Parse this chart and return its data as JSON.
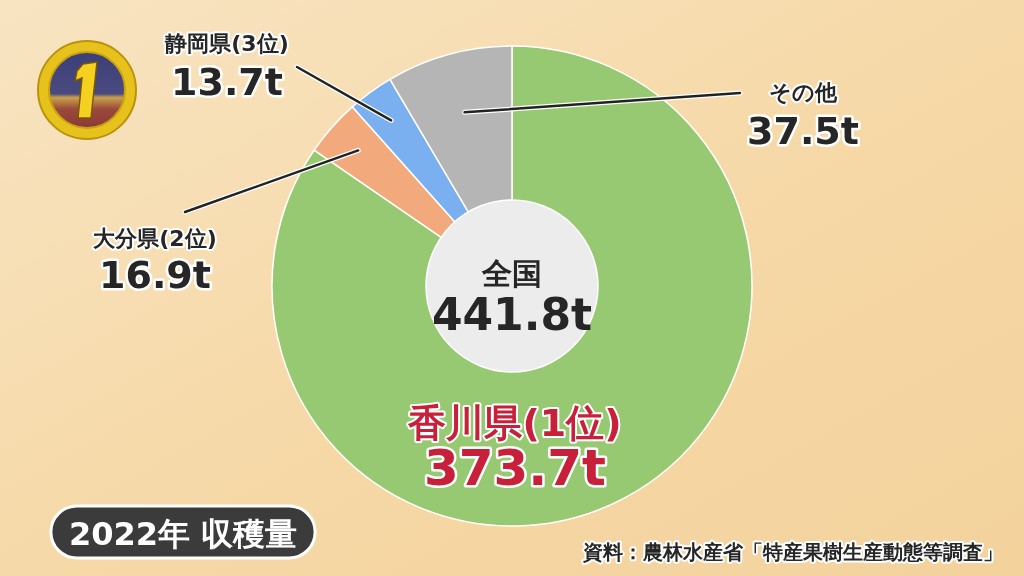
{
  "chart_data": {
    "type": "donut",
    "title": "2022年 収穫量",
    "categories": [
      "香川県(1位)",
      "大分県(2位)",
      "静岡県(3位)",
      "その他"
    ],
    "values": [
      373.7,
      16.9,
      13.7,
      37.5
    ],
    "colors": [
      "#97c872",
      "#f2a97c",
      "#7ab0ef",
      "#b5b5b5"
    ],
    "value_labels": [
      "373.7t",
      "16.9t",
      "13.7t",
      "37.5t"
    ],
    "annotations": [
      "全国",
      "441.8t",
      "資料：農林水産省「特産果樹生産動態等調査」"
    ]
  }
}
